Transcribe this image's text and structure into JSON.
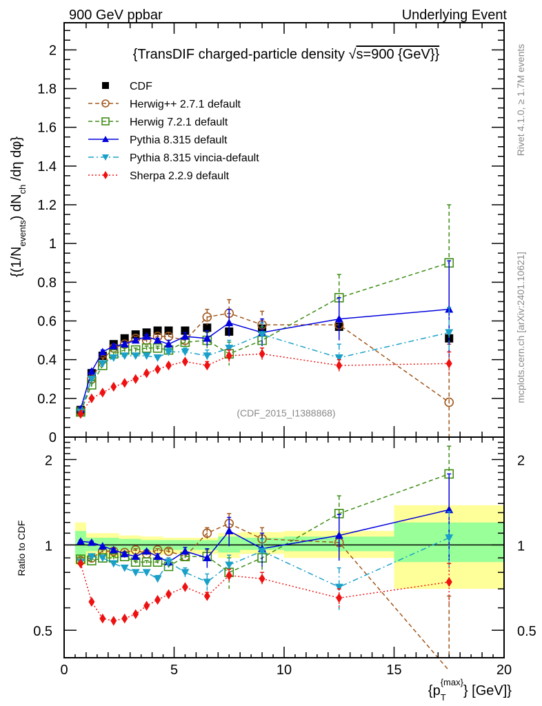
{
  "header": {
    "left": "900 GeV ppbar",
    "right": "Underlying Event"
  },
  "side_labels": {
    "rivet": "Rivet 4.1.0, ≥ 1.7M events",
    "mcplots": "mcplots.cern.ch [arXiv:2401.10621]"
  },
  "chart_data": [
    {
      "type": "line",
      "panel": "main",
      "title": "{TransDIF charged-particle density √s=900 {GeV}}",
      "title_parts": [
        "{TransDIF charged-particle density ",
        "√",
        "s=900 {GeV}}"
      ],
      "ylabel": "{(1/N_events) dN_ch/dη dφ}",
      "ylabel_parts": [
        "{(1/N",
        "events",
        ") dN",
        "ch",
        " /dη  dφ}"
      ],
      "xlabel": "{p_T^{max}} [GeV]",
      "xlim": [
        0,
        20
      ],
      "ylim": [
        0,
        2.14
      ],
      "yticks": [
        "0",
        "0.2",
        "0.4",
        "0.6",
        "0.8",
        "1",
        "1.2",
        "1.4",
        "1.6",
        "1.8",
        "2"
      ],
      "annotation": "(CDF_2015_I1388868)",
      "legend_position": "top-left",
      "x": [
        0.75,
        1.25,
        1.75,
        2.25,
        2.75,
        3.25,
        3.75,
        4.25,
        4.75,
        5.5,
        6.5,
        7.5,
        9.0,
        12.5,
        17.5
      ],
      "series": [
        {
          "name": "CDF",
          "color": "#000000",
          "marker": "square",
          "line": "none",
          "values": [
            0.14,
            0.33,
            0.42,
            0.48,
            0.51,
            0.53,
            0.54,
            0.55,
            0.55,
            0.55,
            0.565,
            0.545,
            0.56,
            0.57,
            0.51
          ]
        },
        {
          "name": "Herwig++ 2.7.1 default",
          "color": "#a0561a",
          "marker": "open-circle",
          "line": "dashed",
          "values": [
            0.13,
            0.3,
            0.4,
            0.46,
            0.48,
            0.51,
            0.5,
            0.52,
            0.52,
            0.5,
            0.62,
            0.64,
            0.58,
            0.58,
            0.18
          ],
          "errors": [
            0.01,
            0.01,
            0.01,
            0.01,
            0.01,
            0.01,
            0.01,
            0.01,
            0.02,
            0.02,
            0.04,
            0.07,
            0.07,
            0.0,
            0.3
          ]
        },
        {
          "name": "Herwig 7.2.1 default",
          "color": "#3c8c14",
          "marker": "open-square",
          "line": "dashed",
          "values": [
            0.13,
            0.27,
            0.37,
            0.43,
            0.45,
            0.45,
            0.46,
            0.46,
            0.45,
            0.49,
            0.5,
            0.43,
            0.5,
            0.72,
            0.9
          ],
          "errors": [
            0.01,
            0.01,
            0.01,
            0.01,
            0.01,
            0.01,
            0.01,
            0.01,
            0.02,
            0.02,
            0.04,
            0.06,
            0.07,
            0.12,
            0.3
          ]
        },
        {
          "name": "Pythia 8.315 default",
          "color": "#0000dd",
          "marker": "triangle-up",
          "line": "solid",
          "values": [
            0.145,
            0.34,
            0.44,
            0.47,
            0.48,
            0.5,
            0.52,
            0.5,
            0.48,
            0.52,
            0.51,
            0.59,
            0.54,
            0.61,
            0.66
          ],
          "errors": [
            0.01,
            0.01,
            0.01,
            0.01,
            0.01,
            0.01,
            0.01,
            0.01,
            0.02,
            0.02,
            0.04,
            0.07,
            0.07,
            0.11,
            0.25
          ]
        },
        {
          "name": "Pythia 8.315 vincia-default",
          "color": "#1aa0c8",
          "marker": "triangle-down",
          "line": "dashdot",
          "values": [
            0.13,
            0.3,
            0.38,
            0.41,
            0.42,
            0.42,
            0.42,
            0.41,
            0.44,
            0.44,
            0.42,
            0.46,
            0.53,
            0.41,
            0.54
          ],
          "errors": [
            0.01,
            0.01,
            0.01,
            0.01,
            0.01,
            0.01,
            0.01,
            0.01,
            0.02,
            0.02,
            0.03,
            0.04,
            0.06,
            0.07,
            0.13
          ]
        },
        {
          "name": "Sherpa 2.2.9 default",
          "color": "#ee1111",
          "marker": "diamond",
          "line": "dotted",
          "values": [
            0.12,
            0.2,
            0.23,
            0.26,
            0.28,
            0.3,
            0.33,
            0.35,
            0.37,
            0.39,
            0.37,
            0.42,
            0.43,
            0.37,
            0.38
          ],
          "errors": [
            0.005,
            0.005,
            0.005,
            0.005,
            0.005,
            0.005,
            0.005,
            0.005,
            0.01,
            0.01,
            0.02,
            0.03,
            0.03,
            0.03,
            0.06
          ]
        }
      ]
    },
    {
      "type": "line",
      "panel": "ratio",
      "ylabel": "Ratio to CDF",
      "xlabel": "{p_T^{max}} [GeV]",
      "xlim": [
        0,
        20
      ],
      "ylim": [
        0.4,
        2.4
      ],
      "yscale": "log",
      "yticks": [
        "0.5",
        "1",
        "2"
      ],
      "xticks": [
        "0",
        "5",
        "10",
        "15",
        "20"
      ],
      "reference": 1.0,
      "bands": {
        "bins": [
          [
            0.5,
            1.0
          ],
          [
            1.0,
            2.5
          ],
          [
            2.5,
            3.5
          ],
          [
            3.5,
            4.5
          ],
          [
            4.5,
            6.0
          ],
          [
            6.0,
            7.0
          ],
          [
            7.0,
            8.0
          ],
          [
            8.0,
            10.0
          ],
          [
            10.0,
            15.0
          ],
          [
            15.0,
            20.0
          ]
        ],
        "inner": [
          [
            0.9,
            1.12
          ],
          [
            0.95,
            1.06
          ],
          [
            0.96,
            1.05
          ],
          [
            0.96,
            1.04
          ],
          [
            0.96,
            1.04
          ],
          [
            0.96,
            1.04
          ],
          [
            0.94,
            1.07
          ],
          [
            0.96,
            1.06
          ],
          [
            0.95,
            1.07
          ],
          [
            0.87,
            1.2
          ]
        ],
        "outer": [
          [
            0.85,
            1.2
          ],
          [
            0.9,
            1.1
          ],
          [
            0.91,
            1.08
          ],
          [
            0.92,
            1.07
          ],
          [
            0.93,
            1.06
          ],
          [
            0.93,
            1.06
          ],
          [
            0.9,
            1.1
          ],
          [
            0.93,
            1.11
          ],
          [
            0.9,
            1.12
          ],
          [
            0.7,
            1.38
          ]
        ],
        "inner_color": "#99ff99",
        "outer_color": "#ffff99"
      },
      "x": [
        0.75,
        1.25,
        1.75,
        2.25,
        2.75,
        3.25,
        3.75,
        4.25,
        4.75,
        5.5,
        6.5,
        7.5,
        9.0,
        12.5,
        17.5
      ],
      "series": [
        {
          "name": "Herwig++ 2.7.1 default",
          "color": "#a0561a",
          "marker": "open-circle",
          "line": "dashed",
          "values": [
            0.88,
            0.9,
            0.95,
            0.95,
            0.94,
            0.96,
            0.93,
            0.96,
            0.95,
            0.91,
            1.1,
            1.19,
            1.05,
            1.02,
            0.36
          ],
          "errors": [
            0.01,
            0.01,
            0.01,
            0.01,
            0.01,
            0.01,
            0.01,
            0.01,
            0.02,
            0.02,
            0.05,
            0.1,
            0.1,
            0.0,
            0.3
          ]
        },
        {
          "name": "Herwig 7.2.1 default",
          "color": "#3c8c14",
          "marker": "open-square",
          "line": "dashed",
          "values": [
            0.89,
            0.88,
            0.9,
            0.9,
            0.91,
            0.87,
            0.87,
            0.87,
            0.84,
            0.91,
            0.91,
            0.8,
            0.9,
            1.29,
            1.78
          ],
          "errors": [
            0.01,
            0.01,
            0.01,
            0.01,
            0.01,
            0.01,
            0.01,
            0.01,
            0.02,
            0.02,
            0.05,
            0.1,
            0.1,
            0.2,
            0.45
          ]
        },
        {
          "name": "Pythia 8.315 default",
          "color": "#0000dd",
          "marker": "triangle-up",
          "line": "solid",
          "values": [
            1.03,
            1.02,
            0.99,
            0.96,
            0.93,
            0.91,
            0.95,
            0.91,
            0.87,
            0.95,
            0.9,
            1.12,
            0.97,
            1.08,
            1.33
          ],
          "errors": [
            0.01,
            0.01,
            0.01,
            0.01,
            0.01,
            0.01,
            0.01,
            0.02,
            0.03,
            0.03,
            0.07,
            0.13,
            0.13,
            0.2,
            0.45
          ]
        },
        {
          "name": "Pythia 8.315 vincia-default",
          "color": "#1aa0c8",
          "marker": "triangle-down",
          "line": "dashdot",
          "values": [
            0.87,
            0.91,
            0.9,
            0.86,
            0.83,
            0.8,
            0.8,
            0.76,
            0.87,
            0.8,
            0.74,
            0.85,
            0.95,
            0.71,
            1.06
          ],
          "errors": [
            0.01,
            0.01,
            0.01,
            0.01,
            0.01,
            0.01,
            0.01,
            0.02,
            0.03,
            0.03,
            0.05,
            0.07,
            0.1,
            0.12,
            0.25
          ]
        },
        {
          "name": "Sherpa 2.2.9 default",
          "color": "#ee1111",
          "marker": "diamond",
          "line": "dotted",
          "values": [
            0.86,
            0.63,
            0.55,
            0.54,
            0.55,
            0.57,
            0.61,
            0.64,
            0.67,
            0.71,
            0.66,
            0.78,
            0.76,
            0.65,
            0.74
          ],
          "errors": [
            0.005,
            0.005,
            0.005,
            0.005,
            0.005,
            0.005,
            0.005,
            0.005,
            0.01,
            0.01,
            0.02,
            0.04,
            0.04,
            0.05,
            0.12
          ]
        }
      ]
    }
  ]
}
